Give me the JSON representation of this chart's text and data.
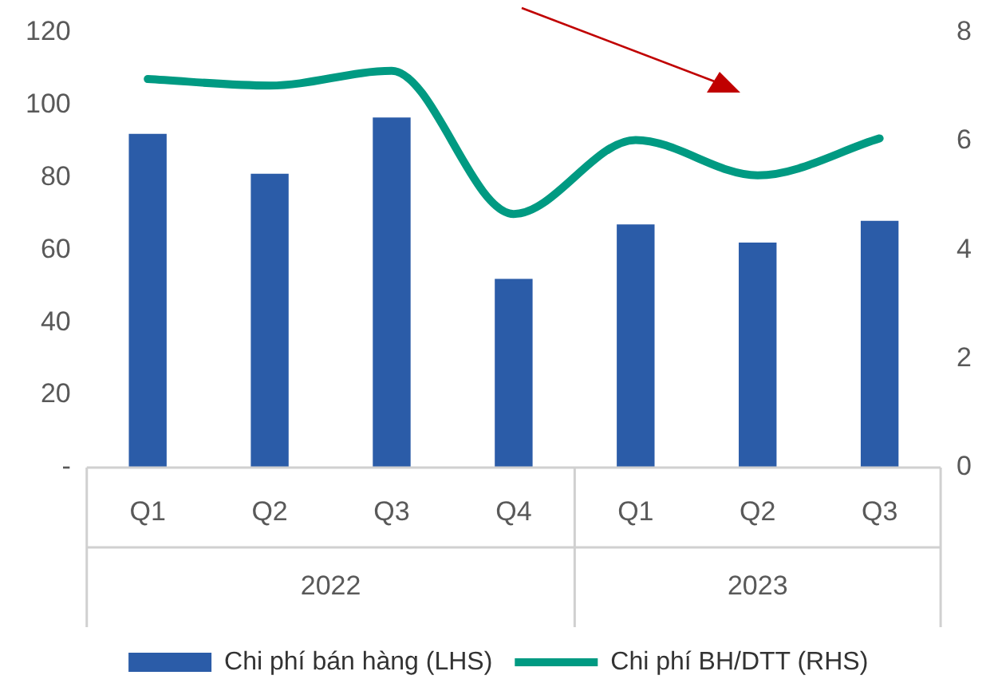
{
  "chart_data": {
    "type": "bar",
    "categories": [
      "Q1",
      "Q2",
      "Q3",
      "Q4",
      "Q1",
      "Q2",
      "Q3"
    ],
    "series": [
      {
        "name": "Chi phí bán hàng (LHS)",
        "color": "#2b5ca8",
        "values": [
          92,
          81,
          96.5,
          52,
          67,
          62,
          68
        ]
      },
      {
        "name": "Chi phí BH/DTT (RHS)",
        "type": "line",
        "axis": "y2",
        "color": "#009a82",
        "values": [
          7.14,
          7.02,
          7.29,
          4.66,
          6.02,
          5.37,
          6.05
        ]
      }
    ],
    "ylim": [
      0,
      120
    ],
    "yticks": [
      {
        "value": 0,
        "label": "-"
      },
      20,
      40,
      60,
      80,
      100,
      120
    ],
    "y2lim": [
      0,
      8
    ],
    "y2ticks": [
      0,
      2,
      4,
      6,
      8
    ],
    "annotations": [
      "2022",
      "2023"
    ],
    "grid": false,
    "legend": "bottom",
    "marker": "none"
  }
}
